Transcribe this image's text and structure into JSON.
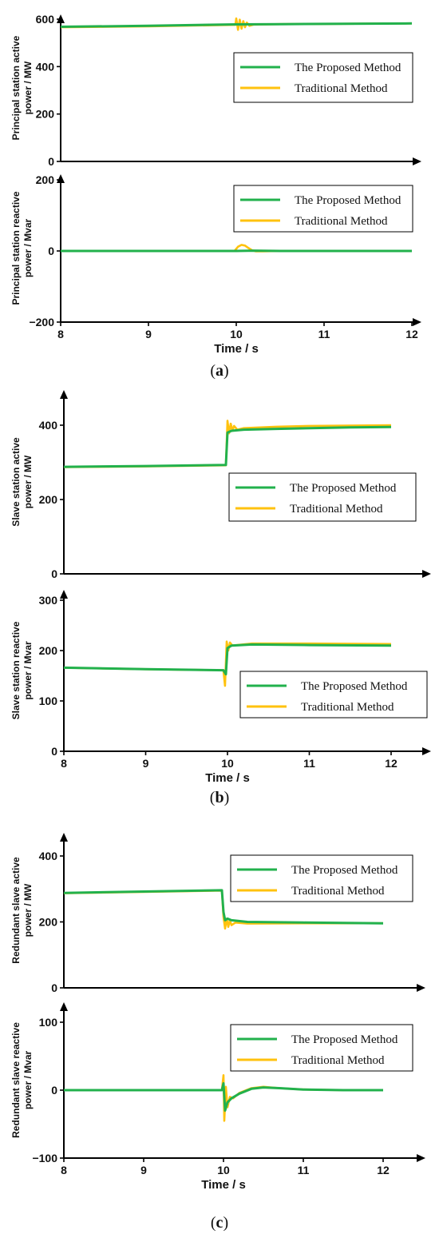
{
  "colors": {
    "proposed": "#22b14c",
    "traditional": "#ffc20e"
  },
  "panel_labels": [
    {
      "open": "(",
      "letter": "a",
      "close": ")"
    },
    {
      "open": "(",
      "letter": "b",
      "close": ")"
    },
    {
      "open": "(",
      "letter": "c",
      "close": ")"
    }
  ],
  "chart_data": [
    {
      "type": "line",
      "panel": "a",
      "title": "",
      "xlabel": "",
      "ylabel": "Principal station active power / MW",
      "xlim": [
        8,
        12.2
      ],
      "ylim": [
        0,
        620
      ],
      "xticks": [],
      "yticks": [
        0,
        200,
        400,
        600
      ],
      "legend": "top-right",
      "series": [
        {
          "name": "The Proposed Method",
          "x": [
            8,
            9,
            10,
            10.5,
            11,
            12
          ],
          "y": [
            568,
            572,
            578,
            579,
            580,
            582
          ]
        },
        {
          "name": "Traditional Method",
          "x": [
            8,
            9,
            9.99,
            10.0,
            10.02,
            10.04,
            10.06,
            10.08,
            10.1,
            10.12,
            10.15,
            10.2,
            10.5,
            11,
            12
          ],
          "y": [
            566,
            570,
            576,
            603,
            555,
            598,
            560,
            592,
            566,
            586,
            572,
            577,
            579,
            580,
            582
          ]
        }
      ]
    },
    {
      "type": "line",
      "panel": "a",
      "title": "",
      "xlabel": "Time / s",
      "ylabel": "Principal station reactive power / Mvar",
      "xlim": [
        8,
        12.2
      ],
      "ylim": [
        -200,
        200
      ],
      "xticks": [
        8,
        9,
        10,
        11,
        12
      ],
      "yticks": [
        -200,
        0,
        200
      ],
      "legend": "top-right",
      "series": [
        {
          "name": "The Proposed Method",
          "x": [
            8,
            10,
            10.2,
            10.5,
            12
          ],
          "y": [
            0,
            0,
            1,
            0,
            0
          ]
        },
        {
          "name": "Traditional Method",
          "x": [
            8,
            9.98,
            10.02,
            10.06,
            10.1,
            10.14,
            10.18,
            10.22,
            10.3,
            10.5,
            12
          ],
          "y": [
            0,
            0,
            12,
            17,
            15,
            8,
            2,
            -1,
            -1,
            0,
            0
          ]
        }
      ]
    },
    {
      "type": "line",
      "panel": "b",
      "title": "",
      "xlabel": "",
      "ylabel": "Slave station active power / MW",
      "xlim": [
        8,
        12.5
      ],
      "ylim": [
        0,
        490
      ],
      "xticks": [],
      "yticks": [
        0,
        200,
        400
      ],
      "legend": "right",
      "series": [
        {
          "name": "The Proposed Method",
          "x": [
            8,
            9,
            9.98,
            10.0,
            10.05,
            10.2,
            10.6,
            11,
            11.5,
            12
          ],
          "y": [
            288,
            290,
            293,
            380,
            385,
            388,
            390,
            392,
            394,
            395
          ]
        },
        {
          "name": "Traditional Method",
          "x": [
            8,
            9,
            9.98,
            10.0,
            10.02,
            10.04,
            10.06,
            10.08,
            10.12,
            10.2,
            10.6,
            11,
            12
          ],
          "y": [
            287,
            289,
            292,
            412,
            378,
            404,
            385,
            398,
            388,
            392,
            396,
            398,
            400
          ]
        }
      ]
    },
    {
      "type": "line",
      "panel": "b",
      "title": "",
      "xlabel": "Time / s",
      "ylabel": "Slave station reactive power / Mvar",
      "xlim": [
        8,
        12.5
      ],
      "ylim": [
        0,
        310
      ],
      "xticks": [
        8,
        9,
        10,
        11,
        12
      ],
      "yticks": [
        0,
        100,
        200,
        300
      ],
      "legend": "right",
      "series": [
        {
          "name": "The Proposed Method",
          "x": [
            8,
            9,
            9.95,
            9.98,
            10.0,
            10.05,
            10.3,
            11,
            12
          ],
          "y": [
            166,
            163,
            161,
            153,
            205,
            210,
            212,
            211,
            210
          ]
        },
        {
          "name": "Traditional Method",
          "x": [
            8,
            9,
            9.95,
            9.97,
            9.99,
            10.01,
            10.03,
            10.06,
            10.3,
            11,
            12
          ],
          "y": [
            166,
            163,
            161,
            130,
            218,
            200,
            216,
            210,
            214,
            214,
            213
          ]
        }
      ]
    },
    {
      "type": "line",
      "panel": "c",
      "title": "",
      "xlabel": "",
      "ylabel": "Redundant slave active power / MW",
      "xlim": [
        8,
        12.5
      ],
      "ylim": [
        0,
        450
      ],
      "xticks": [],
      "yticks": [
        0,
        200,
        400
      ],
      "legend": "top-right",
      "series": [
        {
          "name": "The Proposed Method",
          "x": [
            8,
            9,
            9.98,
            10.0,
            10.02,
            10.05,
            10.1,
            10.3,
            11,
            12
          ],
          "y": [
            288,
            292,
            296,
            230,
            205,
            210,
            205,
            200,
            198,
            196
          ]
        },
        {
          "name": "Traditional Method",
          "x": [
            8,
            9,
            9.98,
            10.0,
            10.02,
            10.04,
            10.06,
            10.08,
            10.1,
            10.15,
            10.3,
            11,
            12
          ],
          "y": [
            287,
            291,
            295,
            215,
            180,
            210,
            185,
            205,
            190,
            198,
            195,
            196,
            196
          ]
        }
      ]
    },
    {
      "type": "line",
      "panel": "c",
      "title": "",
      "xlabel": "Time / s",
      "ylabel": "Redundant slave reactive power / Mvar",
      "xlim": [
        8,
        12.5
      ],
      "ylim": [
        -100,
        125
      ],
      "xticks": [
        8,
        9,
        10,
        11,
        12
      ],
      "yticks": [
        -100,
        0,
        100
      ],
      "legend": "top-right",
      "series": [
        {
          "name": "The Proposed Method",
          "x": [
            8,
            9,
            9.98,
            10.0,
            10.02,
            10.05,
            10.1,
            10.2,
            10.35,
            10.5,
            10.7,
            11,
            11.5,
            12
          ],
          "y": [
            0,
            0,
            0,
            10,
            -30,
            -18,
            -12,
            -5,
            2,
            4,
            3,
            1,
            0,
            0
          ]
        },
        {
          "name": "Traditional Method",
          "x": [
            8,
            9,
            9.98,
            10.0,
            10.01,
            10.03,
            10.05,
            10.08,
            10.12,
            10.2,
            10.35,
            10.5,
            10.7,
            11,
            11.5,
            12
          ],
          "y": [
            0,
            0,
            0,
            22,
            -45,
            5,
            -25,
            -10,
            -12,
            -4,
            3,
            5,
            3,
            1,
            0,
            0
          ]
        }
      ]
    }
  ]
}
